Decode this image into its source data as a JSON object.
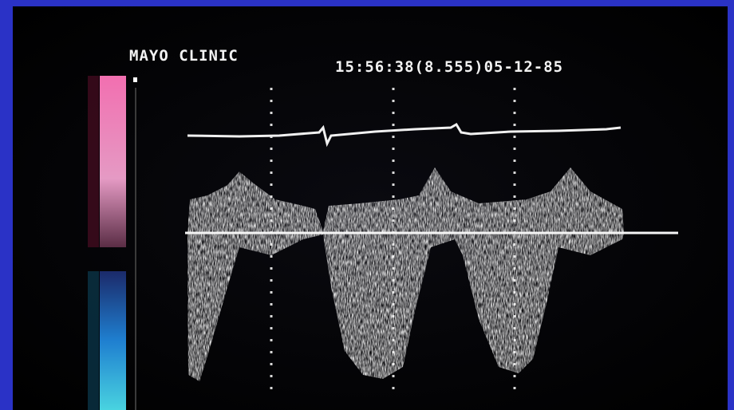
{
  "header": {
    "label": "MAYO CLINIC",
    "timestamp": "15:56:38(8.555)05-12-85"
  }
}
